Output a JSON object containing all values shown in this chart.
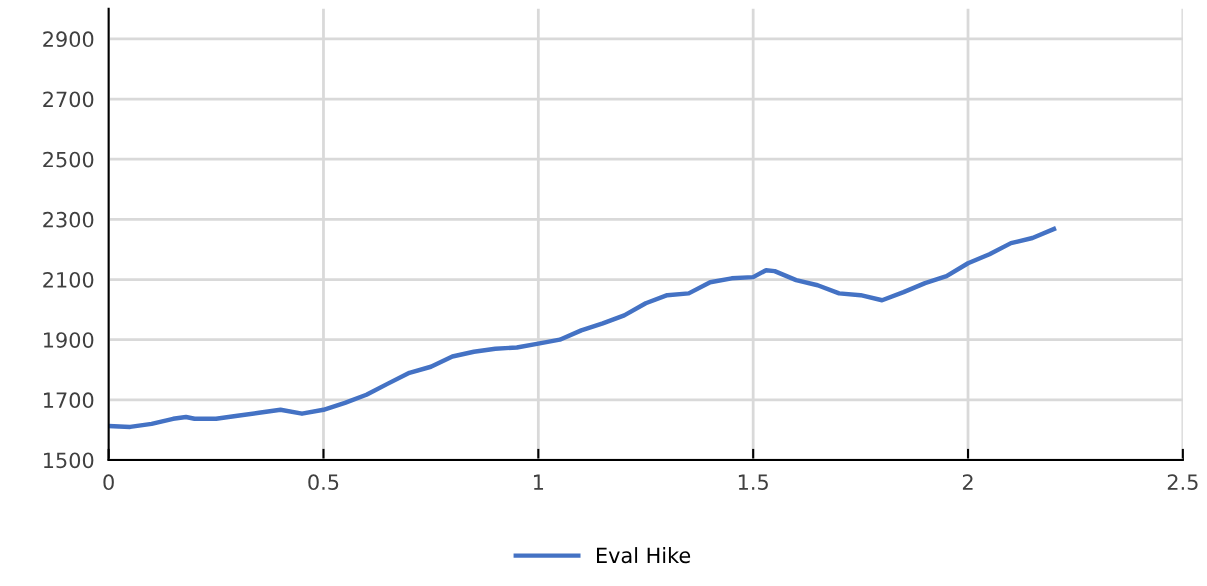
{
  "chart_data": {
    "type": "line",
    "x": [
      0,
      0.05,
      0.1,
      0.15,
      0.18,
      0.2,
      0.25,
      0.3,
      0.35,
      0.4,
      0.45,
      0.5,
      0.55,
      0.6,
      0.65,
      0.7,
      0.75,
      0.8,
      0.85,
      0.9,
      0.95,
      1.0,
      1.05,
      1.1,
      1.15,
      1.2,
      1.25,
      1.3,
      1.35,
      1.4,
      1.45,
      1.5,
      1.53,
      1.55,
      1.6,
      1.65,
      1.7,
      1.75,
      1.8,
      1.85,
      1.9,
      1.95,
      2.0,
      2.05,
      2.1,
      2.15,
      2.2
    ],
    "series": [
      {
        "name": "Eval Hike",
        "color": "#4472c4",
        "values": [
          1613,
          1610,
          1620,
          1637,
          1643,
          1637,
          1637,
          1647,
          1657,
          1667,
          1654,
          1667,
          1690,
          1717,
          1754,
          1790,
          1810,
          1844,
          1860,
          1870,
          1874,
          1887,
          1900,
          1931,
          1954,
          1981,
          2021,
          2048,
          2054,
          2091,
          2104,
          2108,
          2131,
          2128,
          2098,
          2081,
          2054,
          2048,
          2031,
          2058,
          2088,
          2111,
          2154,
          2184,
          2221,
          2238,
          2268
        ]
      }
    ],
    "xlim": [
      0,
      2.5
    ],
    "xticks": [
      0,
      {
        "value": 0.5,
        "label": "0.5"
      },
      1,
      {
        "value": 1.5,
        "label": "1.5"
      },
      2,
      {
        "value": 2.5,
        "label": "2.5"
      }
    ],
    "ylim": [
      1500,
      3000
    ],
    "yticks": [
      1500,
      1700,
      1900,
      2100,
      2300,
      2500,
      2700,
      2900
    ],
    "grid": true,
    "legend": "bottom",
    "marker": "none",
    "line_style": "solid"
  }
}
